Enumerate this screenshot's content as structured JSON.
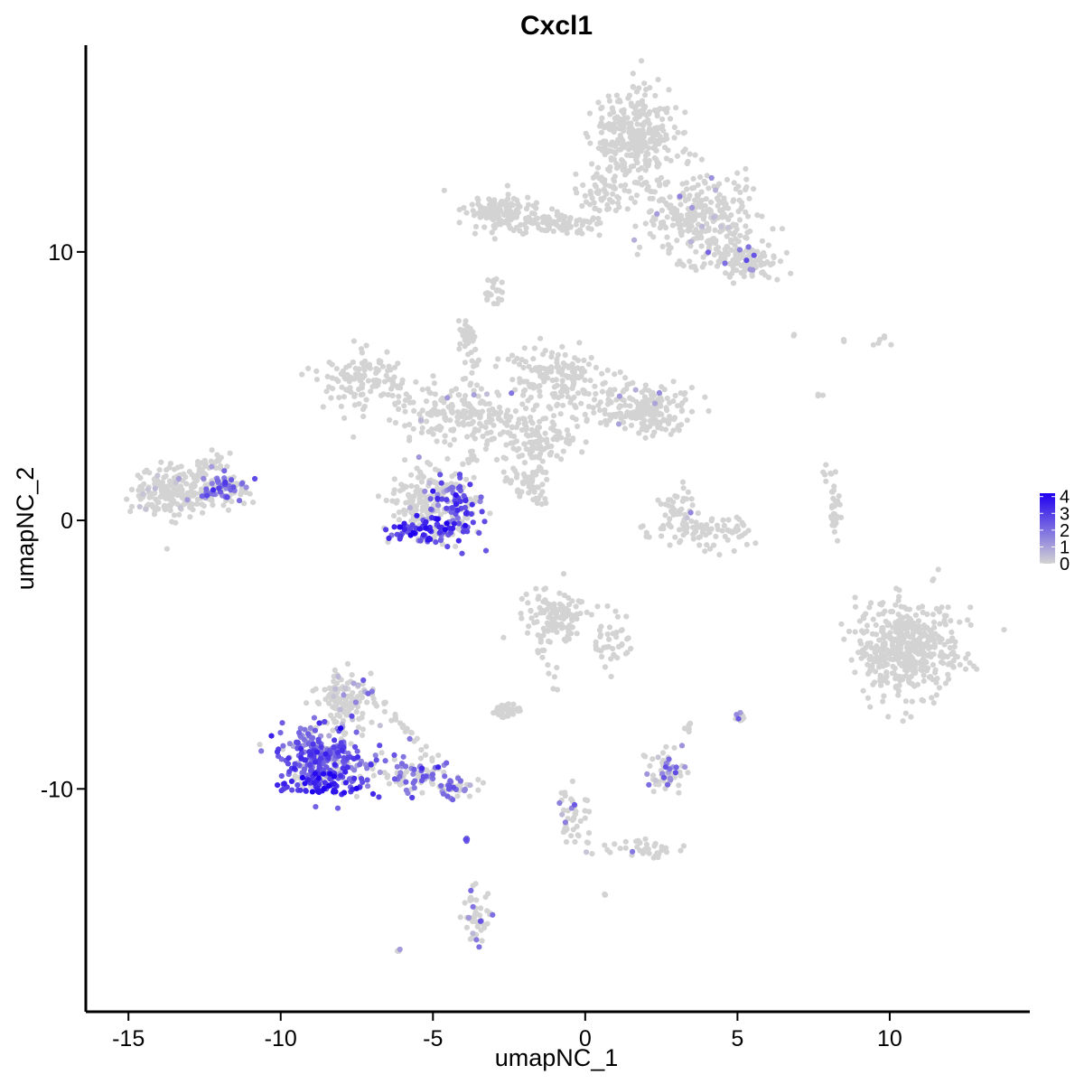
{
  "chart_data": {
    "type": "scatter",
    "title": "Cxcl1",
    "xlabel": "umapNC_1",
    "ylabel": "umapNC_2",
    "xlim": [
      -16.4,
      14.6
    ],
    "ylim": [
      -18.3,
      17.7
    ],
    "x_ticks": [
      -15,
      -10,
      -5,
      0,
      5,
      10
    ],
    "y_ticks": [
      -10,
      0,
      10
    ],
    "x_tick_labels": [
      "-15",
      "-10",
      "-5",
      "0",
      "5",
      "10"
    ],
    "y_tick_labels": [
      "-10",
      "0",
      "10"
    ],
    "grid": false,
    "legend": {
      "placement": "right",
      "type": "colorbar",
      "min": 0,
      "max": 4.2,
      "ticks": [
        4,
        3,
        2,
        1,
        0
      ],
      "tick_labels": [
        "4",
        "3",
        "2",
        "1",
        "0"
      ],
      "low_color": "#d3d3d3",
      "high_color": "#1f00f0"
    },
    "colors": {
      "low": "#d3d3d3",
      "high": "#1f00f0"
    },
    "clusters": [
      {
        "cx": 1.6,
        "cy": 14.3,
        "sx": 0.9,
        "sy": 1.2,
        "n": 320,
        "expr": 0.0,
        "expr_rate": 0.0
      },
      {
        "cx": 3.8,
        "cy": 11.2,
        "sx": 1.2,
        "sy": 1.1,
        "n": 260,
        "expr": 0.8,
        "expr_rate": 0.04
      },
      {
        "cx": 5.3,
        "cy": 9.7,
        "sx": 0.7,
        "sy": 0.5,
        "n": 110,
        "expr": 1.5,
        "expr_rate": 0.05
      },
      {
        "cx": -2.6,
        "cy": 11.5,
        "sx": 0.8,
        "sy": 0.5,
        "n": 130,
        "expr": 0.0,
        "expr_rate": 0.0
      },
      {
        "cx": -0.8,
        "cy": 11.0,
        "sx": 0.9,
        "sy": 0.25,
        "n": 50,
        "expr": 0.0,
        "expr_rate": 0.0
      },
      {
        "cx": 0.6,
        "cy": 12.2,
        "sx": 0.5,
        "sy": 0.6,
        "n": 60,
        "expr": 0.0,
        "expr_rate": 0.0
      },
      {
        "cx": -2.9,
        "cy": 8.5,
        "sx": 0.2,
        "sy": 0.3,
        "n": 10,
        "expr": 0.0,
        "expr_rate": 0.0
      },
      {
        "cx": -7.4,
        "cy": 5.2,
        "sx": 0.9,
        "sy": 0.7,
        "n": 120,
        "expr": 0.0,
        "expr_rate": 0.0
      },
      {
        "cx": -4.3,
        "cy": 4.0,
        "sx": 1.3,
        "sy": 0.7,
        "n": 190,
        "expr": 0.8,
        "expr_rate": 0.02
      },
      {
        "cx": -3.9,
        "cy": 6.9,
        "sx": 0.2,
        "sy": 0.4,
        "n": 30,
        "expr": 0.0,
        "expr_rate": 0.0
      },
      {
        "cx": -1.5,
        "cy": 5.2,
        "sx": 0.6,
        "sy": 0.9,
        "n": 80,
        "expr": 0.0,
        "expr_rate": 0.0
      },
      {
        "cx": -1.6,
        "cy": 3.0,
        "sx": 0.9,
        "sy": 0.6,
        "n": 120,
        "expr": 0.0,
        "expr_rate": 0.0
      },
      {
        "cx": -0.5,
        "cy": 5.6,
        "sx": 0.5,
        "sy": 0.5,
        "n": 60,
        "expr": 0.0,
        "expr_rate": 0.0
      },
      {
        "cx": 1.5,
        "cy": 4.3,
        "sx": 1.4,
        "sy": 0.6,
        "n": 170,
        "expr": 0.9,
        "expr_rate": 0.02
      },
      {
        "cx": 2.3,
        "cy": 3.7,
        "sx": 0.5,
        "sy": 0.4,
        "n": 60,
        "expr": 0.0,
        "expr_rate": 0.0
      },
      {
        "cx": -1.8,
        "cy": 1.5,
        "sx": 0.4,
        "sy": 0.5,
        "n": 25,
        "expr": 0.0,
        "expr_rate": 0.0
      },
      {
        "cx": -5.3,
        "cy": 0.8,
        "sx": 0.7,
        "sy": 0.8,
        "n": 140,
        "expr": 0.6,
        "expr_rate": 0.05
      },
      {
        "cx": -4.3,
        "cy": 0.4,
        "sx": 0.6,
        "sy": 0.9,
        "n": 130,
        "expr": 2.5,
        "expr_rate": 0.7
      },
      {
        "cx": -5.4,
        "cy": -0.4,
        "sx": 0.7,
        "sy": 0.3,
        "n": 70,
        "expr": 3.0,
        "expr_rate": 0.8
      },
      {
        "cx": -13.3,
        "cy": 1.1,
        "sx": 1.0,
        "sy": 0.6,
        "n": 230,
        "expr": 0.5,
        "expr_rate": 0.08
      },
      {
        "cx": -11.8,
        "cy": 1.2,
        "sx": 0.5,
        "sy": 0.35,
        "n": 70,
        "expr": 2.0,
        "expr_rate": 0.6
      },
      {
        "cx": -12.3,
        "cy": 2.2,
        "sx": 0.35,
        "sy": 0.3,
        "n": 25,
        "expr": 0.0,
        "expr_rate": 0.0
      },
      {
        "cx": 3.7,
        "cy": -0.4,
        "sx": 1.2,
        "sy": 0.5,
        "n": 90,
        "expr": 0.0,
        "expr_rate": 0.0
      },
      {
        "cx": 2.9,
        "cy": 0.6,
        "sx": 0.4,
        "sy": 0.5,
        "n": 30,
        "expr": 1.5,
        "expr_rate": 0.15
      },
      {
        "cx": 8.2,
        "cy": 0.3,
        "sx": 0.12,
        "sy": 0.6,
        "n": 25,
        "expr": 0.0,
        "expr_rate": 0.0
      },
      {
        "cx": 10.6,
        "cy": -4.8,
        "sx": 1.1,
        "sy": 1.2,
        "n": 460,
        "expr": 0.0,
        "expr_rate": 0.0
      },
      {
        "cx": -0.9,
        "cy": -3.6,
        "sx": 0.7,
        "sy": 0.6,
        "n": 130,
        "expr": 0.0,
        "expr_rate": 0.0
      },
      {
        "cx": 0.8,
        "cy": -4.5,
        "sx": 0.5,
        "sy": 0.8,
        "n": 40,
        "expr": 0.0,
        "expr_rate": 0.0
      },
      {
        "cx": -2.6,
        "cy": -7.1,
        "sx": 0.3,
        "sy": 0.2,
        "n": 40,
        "expr": 0.0,
        "expr_rate": 0.0
      },
      {
        "cx": -8.6,
        "cy": -8.9,
        "sx": 1.0,
        "sy": 0.8,
        "n": 290,
        "expr": 2.4,
        "expr_rate": 0.75
      },
      {
        "cx": -8.6,
        "cy": -9.8,
        "sx": 0.8,
        "sy": 0.25,
        "n": 70,
        "expr": 3.5,
        "expr_rate": 0.9
      },
      {
        "cx": -7.9,
        "cy": -6.7,
        "sx": 0.6,
        "sy": 0.8,
        "n": 120,
        "expr": 0.8,
        "expr_rate": 0.15
      },
      {
        "cx": -5.6,
        "cy": -9.5,
        "sx": 0.7,
        "sy": 0.4,
        "n": 80,
        "expr": 2.0,
        "expr_rate": 0.55
      },
      {
        "cx": -4.3,
        "cy": -10.0,
        "sx": 0.4,
        "sy": 0.3,
        "n": 40,
        "expr": 2.0,
        "expr_rate": 0.5
      },
      {
        "cx": 2.6,
        "cy": -9.3,
        "sx": 0.4,
        "sy": 0.5,
        "n": 60,
        "expr": 1.5,
        "expr_rate": 0.3
      },
      {
        "cx": 3.4,
        "cy": -7.7,
        "sx": 0.1,
        "sy": 0.1,
        "n": 8,
        "expr": 0.0,
        "expr_rate": 0.0
      },
      {
        "cx": 5.1,
        "cy": -7.3,
        "sx": 0.1,
        "sy": 0.15,
        "n": 10,
        "expr": 1.5,
        "expr_rate": 0.2
      },
      {
        "cx": -0.3,
        "cy": -11.2,
        "sx": 0.3,
        "sy": 0.8,
        "n": 30,
        "expr": 1.5,
        "expr_rate": 0.3
      },
      {
        "cx": 1.5,
        "cy": -12.2,
        "sx": 0.9,
        "sy": 0.2,
        "n": 25,
        "expr": 0.5,
        "expr_rate": 0.1
      },
      {
        "cx": -3.6,
        "cy": -14.7,
        "sx": 0.3,
        "sy": 0.7,
        "n": 35,
        "expr": 1.5,
        "expr_rate": 0.2
      },
      {
        "cx": -3.9,
        "cy": -11.9,
        "sx": 0.03,
        "sy": 0.1,
        "n": 4,
        "expr": 2.5,
        "expr_rate": 0.8
      },
      {
        "cx": -6.1,
        "cy": -16.0,
        "sx": 0.05,
        "sy": 0.05,
        "n": 3,
        "expr": 1.0,
        "expr_rate": 0.3
      },
      {
        "cx": 0.6,
        "cy": -13.9,
        "sx": 0.05,
        "sy": 0.05,
        "n": 3,
        "expr": 1.0,
        "expr_rate": 0.3
      },
      {
        "cx": 6.9,
        "cy": 6.9,
        "sx": 0.05,
        "sy": 0.05,
        "n": 2,
        "expr": 0.0,
        "expr_rate": 0.0
      },
      {
        "cx": 7.7,
        "cy": 4.7,
        "sx": 0.05,
        "sy": 0.1,
        "n": 3,
        "expr": 0.0,
        "expr_rate": 0.0
      },
      {
        "cx": 8.5,
        "cy": 6.7,
        "sx": 0.05,
        "sy": 0.05,
        "n": 2,
        "expr": 0.0,
        "expr_rate": 0.0
      },
      {
        "cx": 9.7,
        "cy": 6.7,
        "sx": 0.2,
        "sy": 0.15,
        "n": 6,
        "expr": 0.0,
        "expr_rate": 0.0
      },
      {
        "cx": -3.0,
        "cy": 9.0,
        "sx": 0.1,
        "sy": 0.1,
        "n": 5,
        "expr": 0.0,
        "expr_rate": 0.0
      },
      {
        "cx": -3.2,
        "cy": 8.4,
        "sx": 0.1,
        "sy": 0.15,
        "n": 6,
        "expr": 0.0,
        "expr_rate": 0.0
      }
    ],
    "bridges": [
      {
        "x0": -2.0,
        "y0": 11.2,
        "x1": 0.5,
        "y1": 11.2,
        "n": 25
      },
      {
        "x0": -3.9,
        "y0": 7.2,
        "x1": -3.5,
        "y1": 4.2,
        "n": 18
      },
      {
        "x0": -2.6,
        "y0": 1.8,
        "x1": -1.2,
        "y1": 0.6,
        "n": 25
      },
      {
        "x0": -4.0,
        "y0": 2.0,
        "x1": -2.4,
        "y1": 4.0,
        "n": 20
      },
      {
        "x0": 1.6,
        "y0": 12.8,
        "x1": 4.9,
        "y1": 9.6,
        "n": 40
      },
      {
        "x0": -7.1,
        "y0": -6.4,
        "x1": -4.0,
        "y1": -10.0,
        "n": 30
      },
      {
        "x0": -1.0,
        "y0": -6.3,
        "x1": -1.5,
        "y1": -4.5,
        "n": 12
      },
      {
        "x0": -3.7,
        "y0": -13.4,
        "x1": -3.5,
        "y1": -15.5,
        "n": 12
      },
      {
        "x0": -0.7,
        "y0": -10.0,
        "x1": 0.0,
        "y1": -12.5,
        "n": 14
      },
      {
        "x0": 1.6,
        "y0": -12.0,
        "x1": 2.5,
        "y1": -12.6,
        "n": 12
      },
      {
        "x0": 7.9,
        "y0": 2.0,
        "x1": 8.5,
        "y1": -0.8,
        "n": 15
      }
    ]
  }
}
